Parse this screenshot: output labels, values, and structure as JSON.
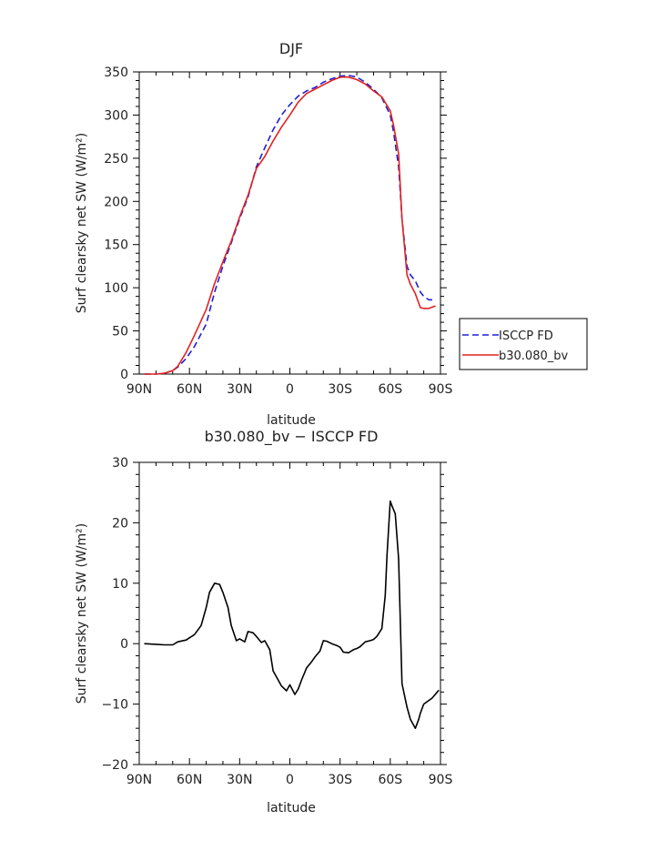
{
  "chart_data": [
    {
      "type": "line",
      "title": "DJF",
      "xlabel": "latitude",
      "ylabel": "Surf clearsky net SW (W/m²)",
      "xlim": [
        90,
        -90
      ],
      "ylim": [
        0,
        350
      ],
      "x_ticks": [
        90,
        60,
        30,
        0,
        -30,
        -60,
        -90
      ],
      "x_tick_labels": [
        "90N",
        "60N",
        "30N",
        "0",
        "30S",
        "60S",
        "90S"
      ],
      "y_ticks": [
        0,
        50,
        100,
        150,
        200,
        250,
        300,
        350
      ],
      "legend": "right-outside",
      "series": [
        {
          "name": "ISCCP FD",
          "color": "#1f1fd6",
          "dash": "dashed",
          "x": [
            87,
            80,
            75,
            70,
            67,
            62,
            57,
            50,
            45,
            40,
            35,
            30,
            25,
            20,
            15,
            10,
            5,
            0,
            -5,
            -10,
            -15,
            -20,
            -25,
            -30,
            -35,
            -40,
            -45,
            -50,
            -55,
            -60,
            -62,
            -65,
            -67,
            -70,
            -72,
            -75,
            -78,
            -80,
            -83,
            -87
          ],
          "y": [
            0,
            0,
            1,
            4,
            8,
            18,
            32,
            58,
            95,
            125,
            152,
            180,
            205,
            240,
            262,
            283,
            300,
            312,
            322,
            328,
            332,
            338,
            342,
            345,
            346,
            344,
            338,
            330,
            320,
            300,
            280,
            240,
            180,
            125,
            115,
            108,
            95,
            90,
            86,
            86
          ]
        },
        {
          "name": "b30.080_bv",
          "color": "#e0231f",
          "dash": "solid",
          "x": [
            87,
            80,
            75,
            70,
            67,
            62,
            57,
            50,
            45,
            40,
            35,
            30,
            25,
            20,
            15,
            10,
            5,
            0,
            -5,
            -10,
            -15,
            -20,
            -25,
            -30,
            -35,
            -40,
            -45,
            -50,
            -55,
            -60,
            -62,
            -65,
            -67,
            -70,
            -72,
            -75,
            -78,
            -80,
            -83,
            -87
          ],
          "y": [
            0,
            0,
            1,
            4,
            9,
            25,
            45,
            75,
            105,
            130,
            154,
            182,
            207,
            238,
            252,
            270,
            286,
            300,
            315,
            325,
            330,
            335,
            340,
            344,
            344,
            341,
            336,
            328,
            321,
            305,
            288,
            255,
            180,
            115,
            104,
            93,
            77,
            76,
            76,
            79
          ]
        }
      ]
    },
    {
      "type": "line",
      "title": "b30.080_bv − ISCCP FD",
      "xlabel": "latitude",
      "ylabel": "Surf clearsky net SW (W/m²)",
      "xlim": [
        90,
        -90
      ],
      "ylim": [
        -20,
        30
      ],
      "x_ticks": [
        90,
        60,
        30,
        0,
        -30,
        -60,
        -90
      ],
      "x_tick_labels": [
        "90N",
        "60N",
        "30N",
        "0",
        "30S",
        "60S",
        "90S"
      ],
      "y_ticks": [
        -20,
        -10,
        0,
        10,
        20,
        30
      ],
      "series": [
        {
          "color": "#000000",
          "x": [
            87,
            80,
            75,
            70,
            67,
            62,
            57,
            53,
            50,
            48,
            45,
            42,
            40,
            37,
            35,
            32,
            30,
            27,
            25,
            22,
            20,
            17,
            15,
            12,
            10,
            7,
            5,
            2,
            0,
            -3,
            -5,
            -7,
            -10,
            -13,
            -15,
            -18,
            -20,
            -22,
            -25,
            -28,
            -30,
            -32,
            -35,
            -38,
            -40,
            -42,
            -45,
            -48,
            -50,
            -52,
            -55,
            -57,
            -58,
            -60,
            -61,
            -63,
            -65,
            -67,
            -70,
            -72,
            -75,
            -77,
            -78,
            -80,
            -85,
            -89
          ],
          "y": [
            0,
            -0.1,
            -0.2,
            -0.2,
            0.3,
            0.6,
            1.5,
            3,
            6,
            8.5,
            10,
            9.8,
            8.5,
            6,
            3,
            0.5,
            0.8,
            0.3,
            2,
            1.8,
            1.2,
            0.2,
            0.5,
            -1,
            -4.5,
            -6,
            -7,
            -7.8,
            -6.8,
            -8.4,
            -7.5,
            -6,
            -4,
            -3,
            -2.2,
            -1.2,
            0.5,
            0.4,
            0,
            -0.3,
            -0.6,
            -1.4,
            -1.5,
            -1,
            -0.8,
            -0.5,
            0.3,
            0.5,
            0.7,
            1.2,
            2.5,
            8,
            14.5,
            23.6,
            22.8,
            21.5,
            14,
            -6.6,
            -10.5,
            -12.5,
            -14,
            -12.5,
            -11.5,
            -10,
            -9,
            -7.7
          ]
        }
      ]
    }
  ]
}
